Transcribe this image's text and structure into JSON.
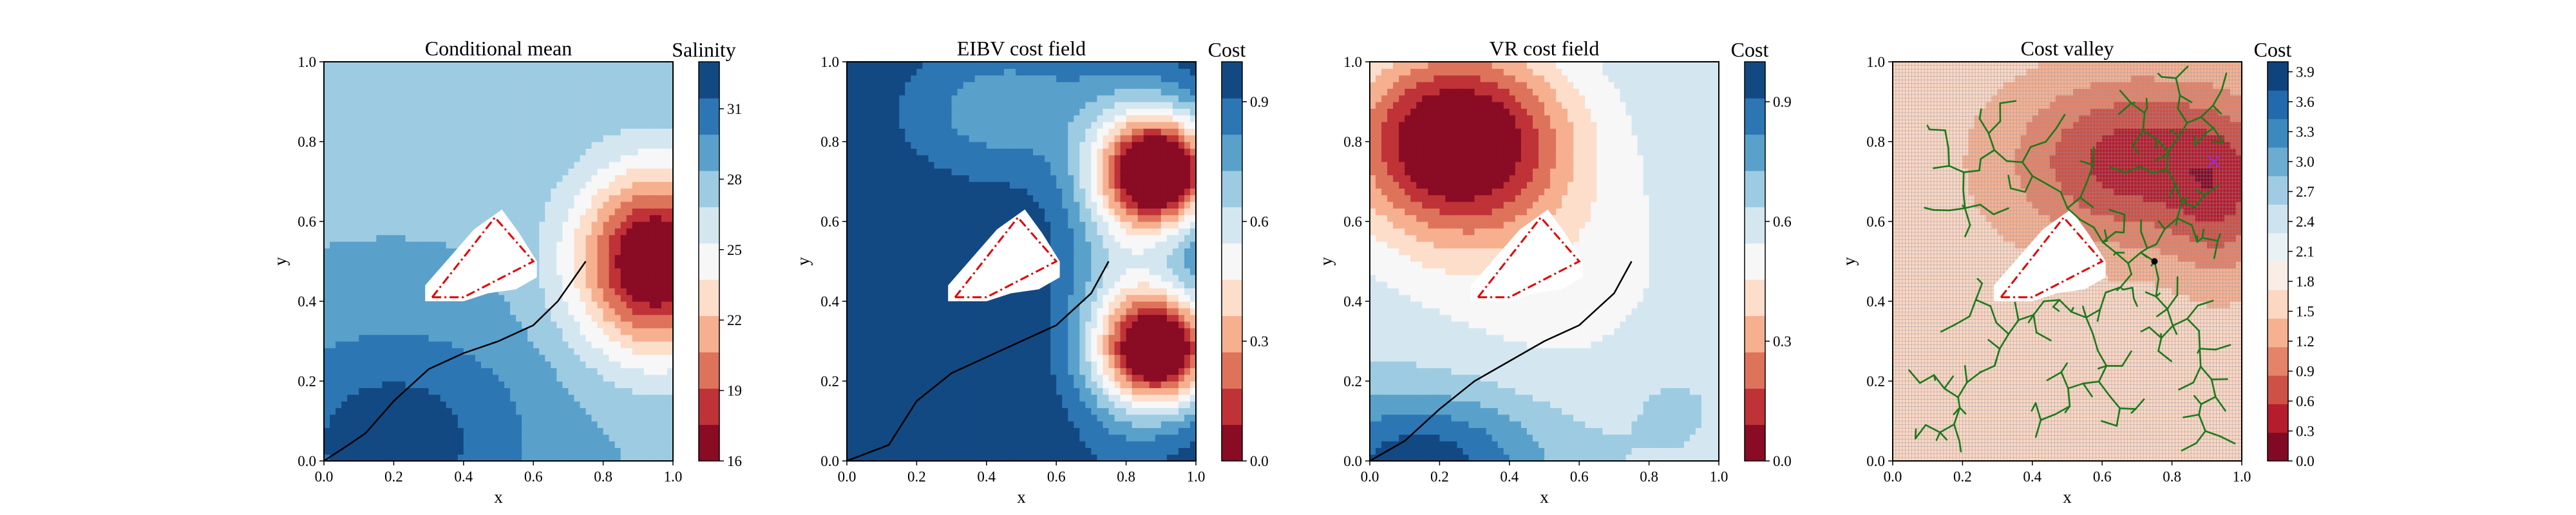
{
  "chart_data": [
    {
      "type": "heatmap",
      "title": "Conditional mean",
      "xlabel": "x",
      "ylabel": "y",
      "xlim": [
        0,
        1
      ],
      "ylim": [
        0,
        1
      ],
      "xticks": [
        "0.0",
        "0.2",
        "0.4",
        "0.6",
        "0.8",
        "1.0"
      ],
      "yticks": [
        "0.0",
        "0.2",
        "0.4",
        "0.6",
        "0.8",
        "1.0"
      ],
      "colorbar": {
        "title": "Salinity",
        "range": [
          16,
          33
        ],
        "ticks": [
          "16",
          "19",
          "22",
          "25",
          "28",
          "31"
        ],
        "tick_values": [
          16,
          19,
          22,
          25,
          28,
          31
        ],
        "colormap": "RdBu",
        "levels": 11
      },
      "field": {
        "base": 28.2,
        "bumps": [
          {
            "x": 0.95,
            "y": 0.5,
            "amp": -13.5,
            "sx": 0.16,
            "sy": 0.16
          },
          {
            "x": 0.2,
            "y": 0.05,
            "amp": 4.2,
            "sx": 0.28,
            "sy": 0.2
          }
        ]
      },
      "obstacle": [
        [
          0.29,
          0.4
        ],
        [
          0.29,
          0.44
        ],
        [
          0.35,
          0.5
        ],
        [
          0.43,
          0.58
        ],
        [
          0.51,
          0.63
        ],
        [
          0.56,
          0.57
        ],
        [
          0.61,
          0.5
        ],
        [
          0.61,
          0.46
        ],
        [
          0.55,
          0.43
        ],
        [
          0.47,
          0.42
        ],
        [
          0.4,
          0.4
        ]
      ],
      "polygon": [
        [
          0.31,
          0.41
        ],
        [
          0.49,
          0.61
        ],
        [
          0.6,
          0.5
        ],
        [
          0.4,
          0.41
        ]
      ],
      "path": [
        [
          0.0,
          0.0
        ],
        [
          0.07,
          0.04
        ],
        [
          0.12,
          0.07
        ],
        [
          0.2,
          0.15
        ],
        [
          0.3,
          0.23
        ],
        [
          0.4,
          0.27
        ],
        [
          0.5,
          0.3
        ],
        [
          0.6,
          0.34
        ],
        [
          0.67,
          0.4
        ],
        [
          0.75,
          0.5
        ]
      ],
      "grid": false
    },
    {
      "type": "heatmap",
      "title": "EIBV cost field",
      "xlabel": "x",
      "ylabel": "y",
      "xlim": [
        0,
        1
      ],
      "ylim": [
        0,
        1
      ],
      "xticks": [
        "0.0",
        "0.2",
        "0.4",
        "0.6",
        "0.8",
        "1.0"
      ],
      "yticks": [
        "0.0",
        "0.2",
        "0.4",
        "0.6",
        "0.8",
        "1.0"
      ],
      "colorbar": {
        "title": "Cost",
        "range": [
          0,
          1
        ],
        "ticks": [
          "0.0",
          "0.3",
          "0.6",
          "0.9"
        ],
        "tick_values": [
          0,
          0.3,
          0.6,
          0.9
        ],
        "colormap": "RdBu",
        "levels": 11
      },
      "field": {
        "base": 0.98,
        "bumps": [
          {
            "x": 0.9,
            "y": 0.73,
            "amp": -1.05,
            "sx": 0.12,
            "sy": 0.1
          },
          {
            "x": 0.9,
            "y": 0.28,
            "amp": -1.0,
            "sx": 0.12,
            "sy": 0.1
          },
          {
            "x": 0.8,
            "y": 0.5,
            "amp": -0.3,
            "sx": 0.12,
            "sy": 0.3
          },
          {
            "x": 0.45,
            "y": 0.88,
            "amp": -0.22,
            "sx": 0.2,
            "sy": 0.12
          }
        ]
      },
      "obstacle": [
        [
          0.29,
          0.4
        ],
        [
          0.29,
          0.44
        ],
        [
          0.35,
          0.5
        ],
        [
          0.43,
          0.58
        ],
        [
          0.51,
          0.63
        ],
        [
          0.56,
          0.57
        ],
        [
          0.61,
          0.5
        ],
        [
          0.61,
          0.46
        ],
        [
          0.55,
          0.43
        ],
        [
          0.47,
          0.42
        ],
        [
          0.4,
          0.4
        ]
      ],
      "polygon": [
        [
          0.31,
          0.41
        ],
        [
          0.49,
          0.61
        ],
        [
          0.6,
          0.5
        ],
        [
          0.4,
          0.41
        ]
      ],
      "path": [
        [
          0.0,
          0.0
        ],
        [
          0.12,
          0.04
        ],
        [
          0.2,
          0.15
        ],
        [
          0.3,
          0.22
        ],
        [
          0.4,
          0.26
        ],
        [
          0.5,
          0.3
        ],
        [
          0.6,
          0.34
        ],
        [
          0.7,
          0.42
        ],
        [
          0.75,
          0.5
        ]
      ],
      "grid": false
    },
    {
      "type": "heatmap",
      "title": "VR cost field",
      "xlabel": "x",
      "ylabel": "y",
      "xlim": [
        0,
        1
      ],
      "ylim": [
        0,
        1
      ],
      "xticks": [
        "0.0",
        "0.2",
        "0.4",
        "0.6",
        "0.8",
        "1.0"
      ],
      "yticks": [
        "0.0",
        "0.2",
        "0.4",
        "0.6",
        "0.8",
        "1.0"
      ],
      "colorbar": {
        "title": "Cost",
        "range": [
          0,
          1
        ],
        "ticks": [
          "0.0",
          "0.3",
          "0.6",
          "0.9"
        ],
        "tick_values": [
          0,
          0.3,
          0.6,
          0.9
        ],
        "colormap": "RdBu",
        "levels": 11
      },
      "field": {
        "base": 0.62,
        "bumps": [
          {
            "x": 0.25,
            "y": 0.8,
            "amp": -0.7,
            "sx": 0.22,
            "sy": 0.17
          },
          {
            "x": 0.55,
            "y": 0.45,
            "amp": -0.1,
            "sx": 0.3,
            "sy": 0.25
          },
          {
            "x": 0.15,
            "y": 0.0,
            "amp": 0.35,
            "sx": 0.25,
            "sy": 0.12
          },
          {
            "x": 0.85,
            "y": 0.15,
            "amp": 0.05,
            "sx": 0.12,
            "sy": 0.1
          }
        ]
      },
      "obstacle": [
        [
          0.29,
          0.4
        ],
        [
          0.29,
          0.44
        ],
        [
          0.35,
          0.5
        ],
        [
          0.43,
          0.58
        ],
        [
          0.51,
          0.63
        ],
        [
          0.56,
          0.57
        ],
        [
          0.61,
          0.5
        ],
        [
          0.61,
          0.46
        ],
        [
          0.55,
          0.43
        ],
        [
          0.47,
          0.42
        ],
        [
          0.4,
          0.4
        ]
      ],
      "polygon": [
        [
          0.31,
          0.41
        ],
        [
          0.49,
          0.61
        ],
        [
          0.6,
          0.5
        ],
        [
          0.4,
          0.41
        ]
      ],
      "path": [
        [
          0.0,
          0.0
        ],
        [
          0.1,
          0.05
        ],
        [
          0.2,
          0.13
        ],
        [
          0.3,
          0.2
        ],
        [
          0.4,
          0.25
        ],
        [
          0.5,
          0.3
        ],
        [
          0.6,
          0.34
        ],
        [
          0.7,
          0.42
        ],
        [
          0.75,
          0.5
        ]
      ],
      "grid": false
    },
    {
      "type": "heatmap",
      "title": "Cost valley",
      "xlabel": "x",
      "ylabel": "y",
      "xlim": [
        0,
        1
      ],
      "ylim": [
        0,
        1
      ],
      "xticks": [
        "0.0",
        "0.2",
        "0.4",
        "0.6",
        "0.8",
        "1.0"
      ],
      "yticks": [
        "0.0",
        "0.2",
        "0.4",
        "0.6",
        "0.8",
        "1.0"
      ],
      "colorbar": {
        "title": "Cost",
        "range": [
          0,
          4
        ],
        "ticks": [
          "0.0",
          "0.3",
          "0.6",
          "0.9",
          "1.2",
          "1.5",
          "1.8",
          "2.1",
          "2.4",
          "2.7",
          "3.0",
          "3.3",
          "3.6",
          "3.9"
        ],
        "tick_values": [
          0,
          0.3,
          0.6,
          0.9,
          1.2,
          1.5,
          1.8,
          2.1,
          2.4,
          2.7,
          3.0,
          3.3,
          3.6,
          3.9
        ],
        "colormap": "RdBu",
        "levels": 14
      },
      "field": {
        "base": 1.6,
        "bumps": [
          {
            "x": 0.7,
            "y": 0.75,
            "amp": -1.2,
            "sx": 0.25,
            "sy": 0.15
          },
          {
            "x": 0.95,
            "y": 0.65,
            "amp": -0.6,
            "sx": 0.1,
            "sy": 0.15
          }
        ]
      },
      "obstacle": [
        [
          0.29,
          0.4
        ],
        [
          0.29,
          0.44
        ],
        [
          0.35,
          0.5
        ],
        [
          0.43,
          0.58
        ],
        [
          0.51,
          0.63
        ],
        [
          0.56,
          0.57
        ],
        [
          0.61,
          0.5
        ],
        [
          0.61,
          0.46
        ],
        [
          0.55,
          0.43
        ],
        [
          0.47,
          0.42
        ],
        [
          0.4,
          0.4
        ]
      ],
      "polygon": [
        [
          0.31,
          0.41
        ],
        [
          0.49,
          0.61
        ],
        [
          0.6,
          0.5
        ],
        [
          0.4,
          0.41
        ]
      ],
      "tree_root": [
        0.75,
        0.5
      ],
      "target": [
        0.92,
        0.75
      ],
      "grid": true
    }
  ],
  "colors": {
    "path": "#000000",
    "polygon": "#e00000",
    "tree": "#1a7a1a",
    "target": "#9a2bd6",
    "obstacle": "#ffffff"
  }
}
